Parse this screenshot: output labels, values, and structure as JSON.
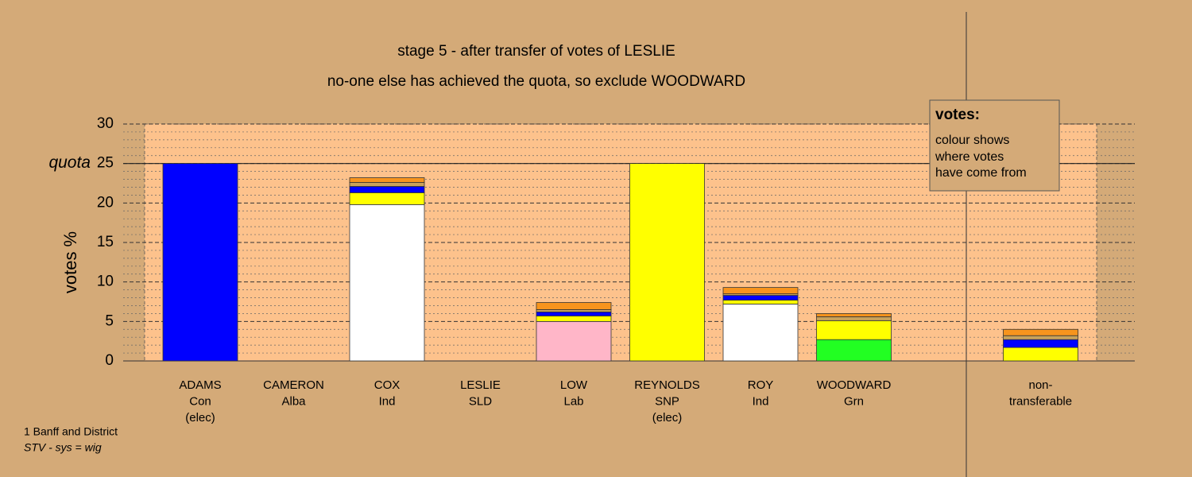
{
  "chart_data": {
    "type": "stacked_bar",
    "title": "stage 5 - after transfer of votes of LESLIE",
    "subtitle": "no-one else has achieved the quota, so exclude WOODWARD",
    "y_label": "votes %",
    "categories": [
      [
        "ADAMS",
        "Con",
        "(elec)"
      ],
      [
        "CAMERON",
        "Alba"
      ],
      [
        "COX",
        "Ind"
      ],
      [
        "LESLIE",
        "SLD"
      ],
      [
        "LOW",
        "Lab"
      ],
      [
        "REYNOLDS",
        "SNP",
        "(elec)"
      ],
      [
        "ROY",
        "Ind"
      ],
      [
        "WOODWARD",
        "Grn"
      ],
      null,
      [
        "non-",
        "transferable"
      ]
    ],
    "series": [
      {
        "color": "#ffb6c8",
        "values": [
          null,
          null,
          null,
          null,
          5.0,
          null,
          null,
          null,
          null,
          null
        ]
      },
      {
        "color": "#22ff22",
        "values": [
          null,
          null,
          null,
          null,
          null,
          null,
          null,
          2.7,
          null,
          null
        ]
      },
      {
        "color": "#ffffff",
        "values": [
          null,
          null,
          19.8,
          null,
          null,
          null,
          7.2,
          null,
          null,
          null
        ]
      },
      {
        "color": "#ffff00",
        "values": [
          null,
          null,
          1.5,
          null,
          0.7,
          25,
          0.5,
          2.4,
          null,
          1.7
        ]
      },
      {
        "color": "#0000ff",
        "values": [
          25,
          null,
          0.8,
          null,
          0.5,
          null,
          0.6,
          null,
          null,
          1.0
        ]
      },
      {
        "color": "#c9a25a",
        "values": [
          null,
          null,
          0.5,
          null,
          0.3,
          null,
          0.2,
          0.5,
          null,
          0.5
        ]
      },
      {
        "color": "#f7941d",
        "values": [
          null,
          null,
          0.6,
          null,
          0.9,
          null,
          0.8,
          0.4,
          null,
          0.8
        ]
      }
    ],
    "quota": {
      "value": 25,
      "label": "quota"
    },
    "ylim": [
      0,
      30
    ],
    "yticks": [
      0,
      5,
      10,
      15,
      20,
      25,
      30
    ],
    "yminor": [
      1,
      2,
      3,
      4,
      6,
      7,
      8,
      9,
      11,
      12,
      13,
      14,
      16,
      17,
      18,
      19,
      21,
      22,
      23,
      24,
      26,
      27,
      28,
      29
    ],
    "grid": true,
    "legend": {
      "title": "votes:",
      "lines": [
        "colour shows",
        "where votes",
        "have come from"
      ]
    },
    "footer": [
      "1 Banff and District",
      "STV - sys = wig"
    ]
  }
}
